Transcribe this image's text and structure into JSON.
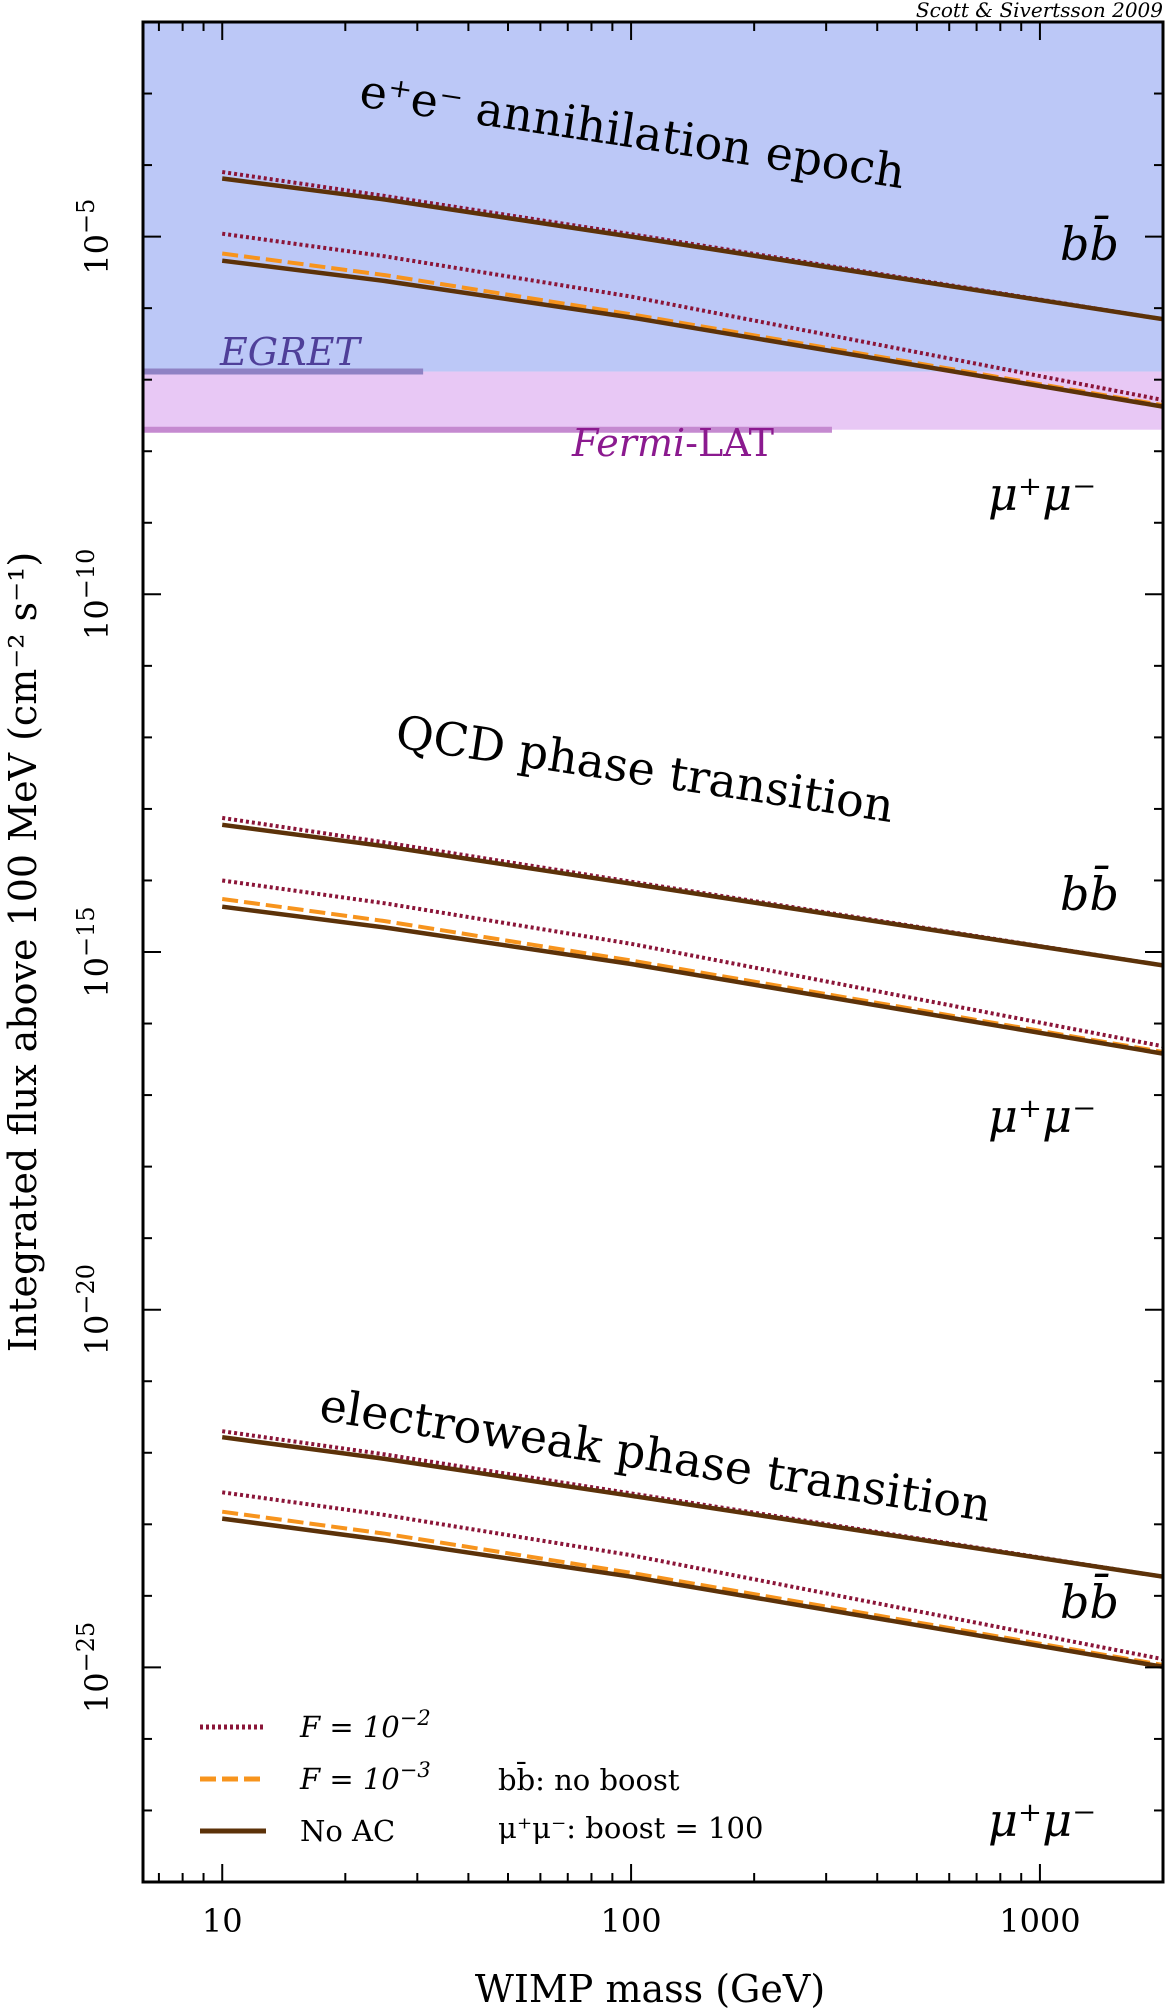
{
  "credit": "Scott & Sivertsson 2009",
  "chart_data": {
    "type": "line",
    "x_scale": "log",
    "y_scale": "log",
    "xlabel": "WIMP mass (GeV)",
    "ylabel": "Integrated flux above 100 MeV (cm⁻² s⁻¹)",
    "xlim": [
      6.4,
      2000
    ],
    "ylim": [
      1e-28,
      0.01
    ],
    "x_ticks": [
      {
        "value": 10,
        "label": "10"
      },
      {
        "value": 100,
        "label": "100"
      },
      {
        "value": 1000,
        "label": "1000"
      }
    ],
    "y_ticks": [
      {
        "value": 1e-05,
        "base": "10",
        "exp": "−5"
      },
      {
        "value": 1e-10,
        "base": "10",
        "exp": "−10"
      },
      {
        "value": 1e-15,
        "base": "10",
        "exp": "−15"
      },
      {
        "value": 1e-20,
        "base": "10",
        "exp": "−20"
      },
      {
        "value": 1e-25,
        "base": "10",
        "exp": "−25"
      }
    ],
    "colors": {
      "F_1e-2": "#8b1538",
      "F_1e-3": "#f7941d",
      "no_AC": "#5c3209",
      "epoch_band": "#bcc8f7",
      "egret_band": "#a3a9ec",
      "egret": "#4f3f99",
      "fermi_band": "#e8c8f5",
      "fermi": "#8b1a8f",
      "fermi_line": "#c58ad0"
    },
    "legend": {
      "entries": [
        {
          "key": "F_1e-2",
          "label": "F = 10",
          "sup": "−2",
          "style": "dotted"
        },
        {
          "key": "F_1e-3",
          "label": "F = 10",
          "sup": "−3",
          "style": "dashed"
        },
        {
          "key": "no_AC",
          "label": "No AC",
          "sup": "",
          "style": "solid"
        }
      ],
      "note_bb": "bb̄: no boost",
      "note_mumu": "μ⁺μ⁻: boost = 100"
    },
    "limits": [
      {
        "key": "fermi",
        "label_pre": "Fermi",
        "label_post": "-LAT",
        "flux": 2e-08,
        "x_end": 310
      },
      {
        "key": "egret",
        "label_pre": "EGRET",
        "label_post": "",
        "flux": 1.3e-07,
        "x_end": 31
      }
    ],
    "epoch_band_bottom_flux": 1.3e-07,
    "epochs": [
      {
        "label": "e⁺e⁻ annihilation epoch",
        "bb_label": "bb̄",
        "mumu_label": "μ⁺μ⁻",
        "series": [
          {
            "key": "F_1e-2",
            "channel": "bb",
            "x": [
              10,
              25,
              100,
              2000
            ],
            "y": [
              8e-05,
              3.7e-05,
              1.08e-05,
              7e-07
            ]
          },
          {
            "key": "no_AC",
            "channel": "bb",
            "x": [
              10,
              25,
              100,
              2000
            ],
            "y": [
              6.5e-05,
              3.3e-05,
              1e-05,
              7e-07
            ]
          },
          {
            "key": "F_1e-2",
            "channel": "mumu",
            "x": [
              10,
              25,
              100,
              2000
            ],
            "y": [
              1.1e-05,
              5.3e-06,
              1.45e-06,
              5.2e-08
            ]
          },
          {
            "key": "F_1e-3",
            "channel": "mumu",
            "x": [
              10,
              25,
              100,
              2000
            ],
            "y": [
              5.8e-06,
              2.9e-06,
              8.2e-07,
              4.4e-08
            ]
          },
          {
            "key": "no_AC",
            "channel": "mumu",
            "x": [
              10,
              25,
              100,
              2000
            ],
            "y": [
              4.6e-06,
              2.4e-06,
              7.4e-07,
              4.2e-08
            ]
          }
        ]
      },
      {
        "label": "QCD phase transition",
        "bb_label": "bb̄",
        "mumu_label": "μ⁺μ⁻",
        "series": [
          {
            "key": "F_1e-2",
            "channel": "bb",
            "x": [
              10,
              25,
              100,
              2000
            ],
            "y": [
              7.5e-14,
              3.4e-14,
              9.6e-15,
              6.5e-16
            ]
          },
          {
            "key": "no_AC",
            "channel": "bb",
            "x": [
              10,
              25,
              100,
              2000
            ],
            "y": [
              6e-14,
              3e-14,
              9e-15,
              6.5e-16
            ]
          },
          {
            "key": "F_1e-2",
            "channel": "mumu",
            "x": [
              10,
              25,
              100,
              2000
            ],
            "y": [
              1e-14,
              4.8e-15,
              1.3e-15,
              4.8e-17
            ]
          },
          {
            "key": "F_1e-3",
            "channel": "mumu",
            "x": [
              10,
              25,
              100,
              2000
            ],
            "y": [
              5.5e-15,
              2.7e-15,
              7.6e-16,
              4e-17
            ]
          },
          {
            "key": "no_AC",
            "channel": "mumu",
            "x": [
              10,
              25,
              100,
              2000
            ],
            "y": [
              4.3e-15,
              2.2e-15,
              6.8e-16,
              3.8e-17
            ]
          }
        ]
      },
      {
        "label": "electroweak phase transition",
        "bb_label": "bb̄",
        "mumu_label": "μ⁺μ⁻",
        "series": [
          {
            "key": "F_1e-2",
            "channel": "bb",
            "x": [
              10,
              25,
              100,
              2000
            ],
            "y": [
              2e-22,
              9.5e-23,
              2.7e-23,
              1.85e-24
            ]
          },
          {
            "key": "no_AC",
            "channel": "bb",
            "x": [
              10,
              25,
              100,
              2000
            ],
            "y": [
              1.65e-22,
              8.2e-23,
              2.5e-23,
              1.85e-24
            ]
          },
          {
            "key": "F_1e-2",
            "channel": "mumu",
            "x": [
              10,
              25,
              100,
              2000
            ],
            "y": [
              2.8e-23,
              1.35e-23,
              3.7e-24,
              1.3e-25
            ]
          },
          {
            "key": "F_1e-3",
            "channel": "mumu",
            "x": [
              10,
              25,
              100,
              2000
            ],
            "y": [
              1.5e-23,
              7.4e-24,
              2.1e-24,
              1.08e-25
            ]
          },
          {
            "key": "no_AC",
            "channel": "mumu",
            "x": [
              10,
              25,
              100,
              2000
            ],
            "y": [
              1.2e-23,
              6e-24,
              1.85e-24,
              1.02e-25
            ]
          }
        ]
      }
    ]
  }
}
